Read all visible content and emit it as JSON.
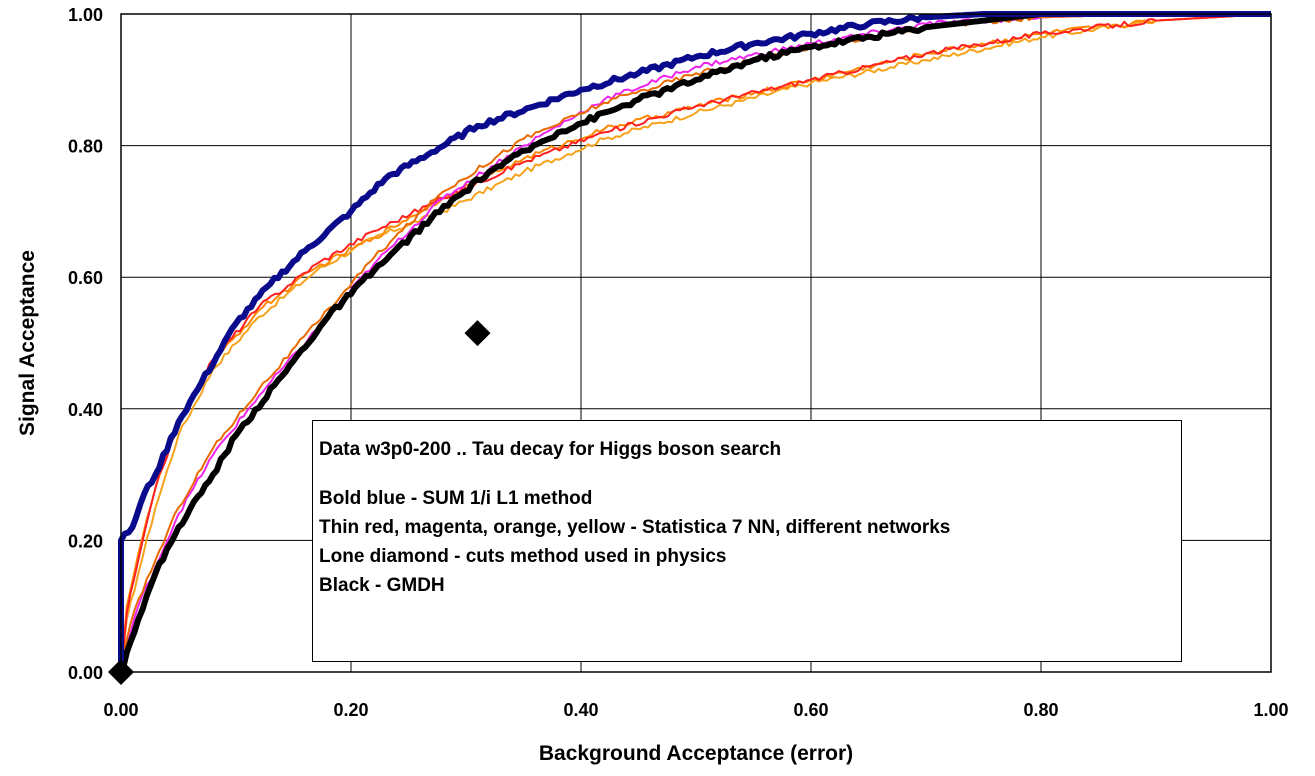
{
  "chart_data": {
    "type": "line",
    "title": "",
    "xlabel": "Background Acceptance (error)",
    "ylabel": "Signal Acceptance",
    "xlim": [
      0,
      1
    ],
    "ylim": [
      0,
      1
    ],
    "x_ticks": [
      "0.00",
      "0.20",
      "0.40",
      "0.60",
      "0.80",
      "1.00"
    ],
    "y_ticks": [
      "0.00",
      "0.20",
      "0.40",
      "0.60",
      "0.80",
      "1.00"
    ],
    "grid": true,
    "series": [
      {
        "color": "#f7a21b",
        "width": 2,
        "points": [
          [
            0,
            0
          ],
          [
            0.005,
            0.08
          ],
          [
            0.015,
            0.15
          ],
          [
            0.03,
            0.25
          ],
          [
            0.05,
            0.36
          ],
          [
            0.08,
            0.46
          ],
          [
            0.12,
            0.54
          ],
          [
            0.17,
            0.61
          ],
          [
            0.22,
            0.66
          ],
          [
            0.28,
            0.7
          ],
          [
            0.35,
            0.76
          ],
          [
            0.42,
            0.81
          ],
          [
            0.5,
            0.85
          ],
          [
            0.6,
            0.895
          ],
          [
            0.7,
            0.93
          ],
          [
            0.8,
            0.965
          ],
          [
            0.9,
            0.99
          ],
          [
            1,
            1
          ]
        ]
      },
      {
        "color": "#ff8800",
        "width": 2,
        "points": [
          [
            0,
            0
          ],
          [
            0.005,
            0.1
          ],
          [
            0.015,
            0.18
          ],
          [
            0.03,
            0.28
          ],
          [
            0.05,
            0.38
          ],
          [
            0.08,
            0.47
          ],
          [
            0.12,
            0.55
          ],
          [
            0.17,
            0.615
          ],
          [
            0.22,
            0.66
          ],
          [
            0.28,
            0.72
          ],
          [
            0.35,
            0.78
          ],
          [
            0.42,
            0.825
          ],
          [
            0.5,
            0.86
          ],
          [
            0.6,
            0.9
          ],
          [
            0.7,
            0.94
          ],
          [
            0.8,
            0.97
          ],
          [
            0.9,
            0.99
          ],
          [
            1,
            1
          ]
        ]
      },
      {
        "color": "#ff2020",
        "width": 2,
        "points": [
          [
            0,
            0
          ],
          [
            0.005,
            0.09
          ],
          [
            0.015,
            0.17
          ],
          [
            0.03,
            0.28
          ],
          [
            0.05,
            0.38
          ],
          [
            0.08,
            0.475
          ],
          [
            0.12,
            0.555
          ],
          [
            0.17,
            0.62
          ],
          [
            0.22,
            0.67
          ],
          [
            0.28,
            0.72
          ],
          [
            0.35,
            0.775
          ],
          [
            0.42,
            0.82
          ],
          [
            0.5,
            0.86
          ],
          [
            0.6,
            0.9
          ],
          [
            0.7,
            0.94
          ],
          [
            0.8,
            0.97
          ],
          [
            0.9,
            0.99
          ],
          [
            1,
            1
          ]
        ]
      },
      {
        "color": "#ee22ee",
        "width": 2,
        "points": [
          [
            0,
            0
          ],
          [
            0.005,
            0.04
          ],
          [
            0.015,
            0.1
          ],
          [
            0.03,
            0.16
          ],
          [
            0.05,
            0.24
          ],
          [
            0.08,
            0.33
          ],
          [
            0.12,
            0.42
          ],
          [
            0.17,
            0.52
          ],
          [
            0.22,
            0.62
          ],
          [
            0.28,
            0.72
          ],
          [
            0.35,
            0.8
          ],
          [
            0.42,
            0.87
          ],
          [
            0.5,
            0.92
          ],
          [
            0.6,
            0.955
          ],
          [
            0.7,
            0.985
          ],
          [
            0.8,
            0.995
          ],
          [
            0.9,
            1
          ],
          [
            1,
            1
          ]
        ]
      },
      {
        "color": "#e86a00",
        "width": 2,
        "points": [
          [
            0,
            0
          ],
          [
            0.005,
            0.05
          ],
          [
            0.015,
            0.11
          ],
          [
            0.03,
            0.17
          ],
          [
            0.05,
            0.25
          ],
          [
            0.08,
            0.34
          ],
          [
            0.12,
            0.43
          ],
          [
            0.17,
            0.53
          ],
          [
            0.22,
            0.63
          ],
          [
            0.28,
            0.73
          ],
          [
            0.35,
            0.81
          ],
          [
            0.42,
            0.865
          ],
          [
            0.5,
            0.91
          ],
          [
            0.6,
            0.95
          ],
          [
            0.7,
            0.98
          ],
          [
            0.8,
            0.995
          ],
          [
            0.9,
            1
          ],
          [
            1,
            1
          ]
        ]
      },
      {
        "color": "#000000",
        "width": 6,
        "points": [
          [
            0,
            0
          ],
          [
            0.005,
            0.03
          ],
          [
            0.015,
            0.08
          ],
          [
            0.03,
            0.15
          ],
          [
            0.05,
            0.22
          ],
          [
            0.08,
            0.3
          ],
          [
            0.1,
            0.36
          ],
          [
            0.14,
            0.45
          ],
          [
            0.18,
            0.54
          ],
          [
            0.22,
            0.61
          ],
          [
            0.27,
            0.69
          ],
          [
            0.32,
            0.76
          ],
          [
            0.38,
            0.82
          ],
          [
            0.45,
            0.87
          ],
          [
            0.5,
            0.9
          ],
          [
            0.55,
            0.93
          ],
          [
            0.6,
            0.95
          ],
          [
            0.7,
            0.98
          ],
          [
            0.8,
            1
          ],
          [
            1,
            1
          ]
        ]
      },
      {
        "color": "#0a0a8c",
        "width": 6,
        "points": [
          [
            0,
            0
          ],
          [
            0,
            0.2
          ],
          [
            0.01,
            0.22
          ],
          [
            0.02,
            0.27
          ],
          [
            0.03,
            0.3
          ],
          [
            0.05,
            0.38
          ],
          [
            0.07,
            0.44
          ],
          [
            0.1,
            0.53
          ],
          [
            0.13,
            0.59
          ],
          [
            0.16,
            0.64
          ],
          [
            0.2,
            0.7
          ],
          [
            0.23,
            0.75
          ],
          [
            0.27,
            0.79
          ],
          [
            0.31,
            0.83
          ],
          [
            0.36,
            0.86
          ],
          [
            0.4,
            0.885
          ],
          [
            0.45,
            0.91
          ],
          [
            0.5,
            0.935
          ],
          [
            0.55,
            0.955
          ],
          [
            0.6,
            0.97
          ],
          [
            0.65,
            0.985
          ],
          [
            0.7,
            0.995
          ],
          [
            0.75,
            1
          ],
          [
            1,
            1
          ]
        ]
      }
    ],
    "markers": [
      {
        "shape": "diamond",
        "color": "#000000",
        "points": [
          [
            0.0,
            0.0
          ],
          [
            0.31,
            0.515
          ]
        ]
      }
    ],
    "annotation": {
      "line1": "Data w3p0-200 .. Tau decay for Higgs boson search",
      "line2": "Bold blue - SUM 1/i L1 method",
      "line3": "Thin red, magenta, orange, yellow - Statistica 7 NN, different networks",
      "line4": "Lone diamond - cuts method used in physics",
      "line5": "Black - GMDH"
    }
  }
}
